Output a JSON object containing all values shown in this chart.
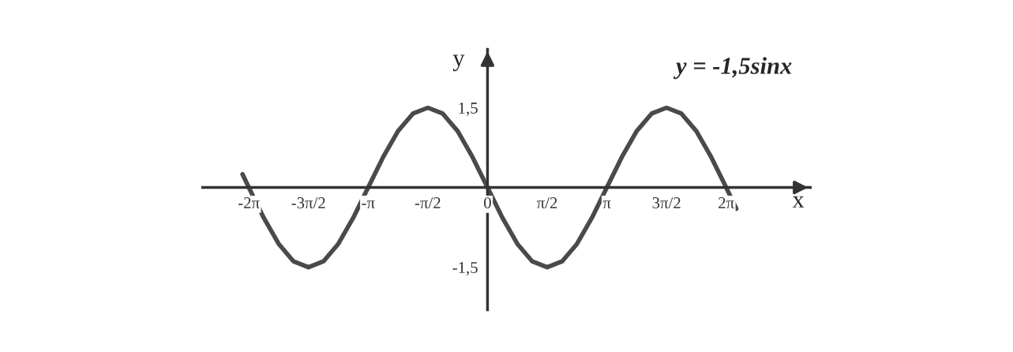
{
  "chart_data": {
    "type": "line",
    "title": "y = -1,5sinx",
    "xlabel": "x",
    "ylabel": "y",
    "x": [
      -6.45,
      -6.2832,
      -5.8905,
      -5.4978,
      -5.1051,
      -4.7124,
      -4.3197,
      -3.927,
      -3.5343,
      -3.1416,
      -2.7489,
      -2.3562,
      -1.9635,
      -1.5708,
      -1.1781,
      -0.7854,
      -0.3927,
      0,
      0.3927,
      0.7854,
      1.1781,
      1.5708,
      1.9635,
      2.3562,
      2.7489,
      3.1416,
      3.5343,
      3.927,
      4.3197,
      4.7124,
      5.1051,
      5.4978,
      5.8905,
      6.2832,
      6.55
    ],
    "series": [
      {
        "color": "#4a4a4a",
        "values": [
          0.25,
          0,
          -0.57,
          -1.06,
          -1.39,
          -1.5,
          -1.39,
          -1.06,
          -0.57,
          0,
          0.57,
          1.06,
          1.39,
          1.5,
          1.39,
          1.06,
          0.57,
          0,
          -0.57,
          -1.06,
          -1.39,
          -1.5,
          -1.39,
          -1.06,
          -0.57,
          0,
          0.57,
          1.06,
          1.39,
          1.5,
          1.39,
          1.06,
          0.57,
          0,
          -0.4
        ]
      }
    ],
    "xlim": [
      -7.5,
      8.5
    ],
    "ylim": [
      -2.3,
      2.6
    ],
    "xticks": [
      {
        "value": -6.2832,
        "label": "-2π"
      },
      {
        "value": -4.7124,
        "label": "-3π/2"
      },
      {
        "value": -3.1416,
        "label": "-π"
      },
      {
        "value": -1.5708,
        "label": "-π/2"
      },
      {
        "value": 0,
        "label": "0"
      },
      {
        "value": 1.5708,
        "label": "π/2"
      },
      {
        "value": 3.1416,
        "label": "π"
      },
      {
        "value": 4.7124,
        "label": "3π/2"
      },
      {
        "value": 6.2832,
        "label": "2π"
      }
    ],
    "yticks": [
      {
        "value": -1.5,
        "label": "-1,5"
      },
      {
        "value": 1.5,
        "label": "1,5"
      }
    ],
    "grid": false,
    "marker": "none",
    "line_style": "solid"
  }
}
